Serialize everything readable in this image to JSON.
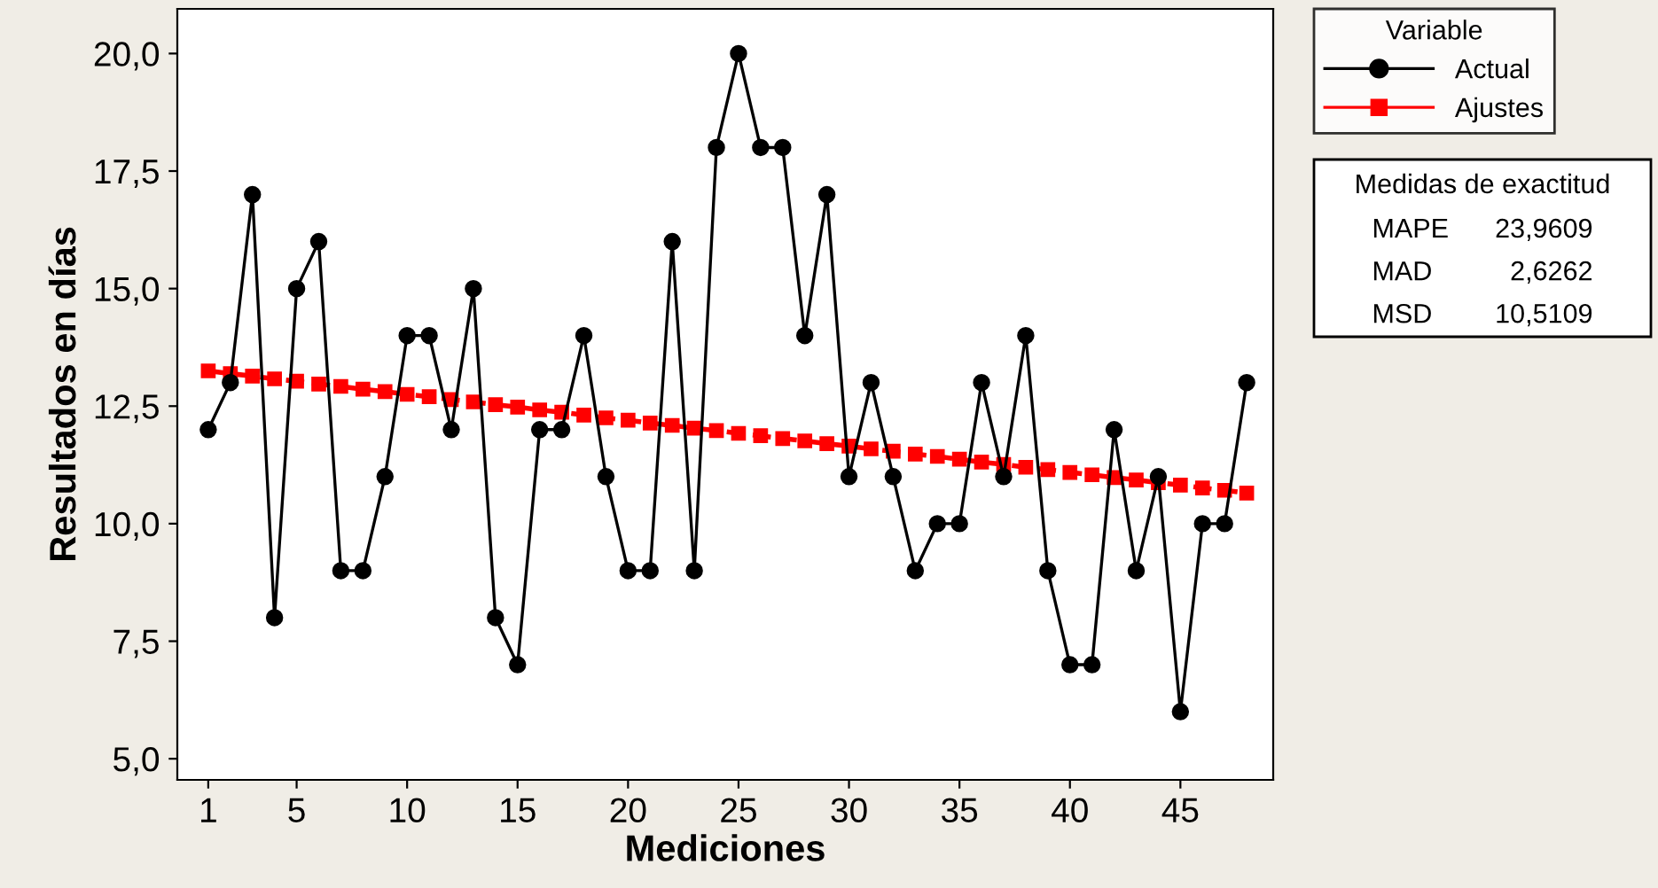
{
  "chart_data": {
    "type": "line",
    "xlabel": "Mediciones",
    "ylabel": "Resultados en días",
    "legend_title": "Variable",
    "legend": "top right",
    "x": [
      1,
      2,
      3,
      4,
      5,
      6,
      7,
      8,
      9,
      10,
      11,
      12,
      13,
      14,
      15,
      16,
      17,
      18,
      19,
      20,
      21,
      22,
      23,
      24,
      25,
      26,
      27,
      28,
      29,
      30,
      31,
      32,
      33,
      34,
      35,
      36,
      37,
      38,
      39,
      40,
      41,
      42,
      43,
      44,
      45,
      46,
      47,
      48
    ],
    "series": [
      {
        "name": "Actual",
        "color": "#000000",
        "marker": "circle",
        "values": [
          12,
          13,
          17,
          8,
          15,
          16,
          9,
          9,
          11,
          14,
          14,
          12,
          15,
          8,
          7,
          12,
          12,
          14,
          11,
          9,
          9,
          16,
          9,
          18,
          20,
          18,
          18,
          14,
          17,
          11,
          13,
          11,
          9,
          10,
          10,
          13,
          11,
          14,
          9,
          7,
          7,
          12,
          9,
          11,
          6,
          10,
          10,
          13
        ]
      },
      {
        "name": "Ajustes",
        "color": "#ff0000",
        "marker": "square",
        "line_style": "dashed",
        "values": [
          13.25,
          13.19,
          13.14,
          13.08,
          13.03,
          12.97,
          12.92,
          12.86,
          12.81,
          12.75,
          12.7,
          12.64,
          12.59,
          12.53,
          12.48,
          12.42,
          12.37,
          12.31,
          12.25,
          12.2,
          12.14,
          12.09,
          12.03,
          11.98,
          11.92,
          11.87,
          11.81,
          11.76,
          11.7,
          11.65,
          11.59,
          11.54,
          11.48,
          11.43,
          11.37,
          11.31,
          11.26,
          11.2,
          11.15,
          11.09,
          11.04,
          10.98,
          10.93,
          10.87,
          10.82,
          10.76,
          10.71,
          10.65
        ]
      }
    ],
    "xlim": [
      -0.4,
      49.2
    ],
    "xticks": [
      1,
      5,
      10,
      15,
      20,
      25,
      30,
      35,
      40,
      45
    ],
    "ylim": [
      4.55,
      20.95
    ],
    "yticks": [
      {
        "value": 5,
        "label": "5,0"
      },
      {
        "value": 7.5,
        "label": "7,5"
      },
      {
        "value": 10,
        "label": "10,0"
      },
      {
        "value": 12.5,
        "label": "12,5"
      },
      {
        "value": 15,
        "label": "15,0"
      },
      {
        "value": 17.5,
        "label": "17,5"
      },
      {
        "value": 20,
        "label": "20,0"
      }
    ],
    "grid": false,
    "line_style": "solid",
    "annotations": [
      "Medidas de exactitud",
      "MAPE",
      "23,9609",
      "MAD",
      "2,6262",
      "MSD",
      "10,5109"
    ]
  }
}
